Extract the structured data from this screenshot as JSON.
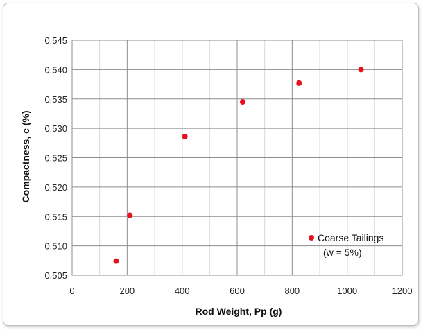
{
  "chart_data": {
    "type": "scatter",
    "title": "",
    "xlabel": "Rod Weight, Pp (g)",
    "ylabel": "Compactness, c (%)",
    "xlim": [
      0,
      1200
    ],
    "ylim": [
      0.505,
      0.545
    ],
    "xticks": [
      0,
      200,
      400,
      600,
      800,
      1000,
      1200
    ],
    "yticks": [
      "0.505",
      "0.510",
      "0.515",
      "0.520",
      "0.525",
      "0.530",
      "0.535",
      "0.540",
      "0.545"
    ],
    "grid": true,
    "legend_position": "lower-right",
    "series": [
      {
        "name": "Coarse Tailings",
        "name_line2": "(w = 5%)",
        "color": "#e8111b",
        "points": [
          {
            "x": 160,
            "y": 0.5074
          },
          {
            "x": 210,
            "y": 0.5152
          },
          {
            "x": 410,
            "y": 0.5286
          },
          {
            "x": 620,
            "y": 0.5345
          },
          {
            "x": 825,
            "y": 0.5377
          },
          {
            "x": 1050,
            "y": 0.54
          }
        ]
      }
    ]
  }
}
